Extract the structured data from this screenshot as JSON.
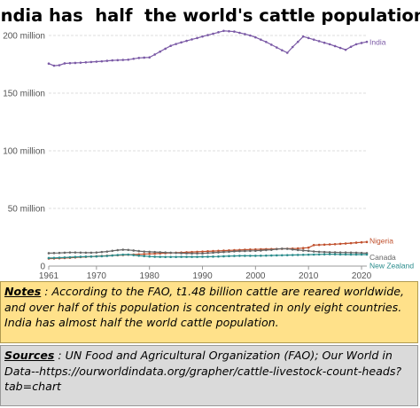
{
  "title": "India has  half  the world's cattle population",
  "notes": {
    "label": "Notes",
    "text": " : According to the FAO, t1.48 billion cattle are reared worldwide, and over half of this population is concentrated in only eight countries. India has almost half the world cattle population."
  },
  "sources": {
    "label": "Sources",
    "text": " : UN Food and Agricultural Organization (FAO); Our World in Data--https://ourworldindata.org/grapher/cattle-livestock-count-heads?tab=chart"
  },
  "colors": {
    "India": "#7b5aa6",
    "Nigeria": "#c0502d",
    "Canada": "#666666",
    "New Zealand": "#2a8c8c",
    "grid": "#dddddd",
    "axis": "#999999"
  },
  "chart_data": {
    "type": "line",
    "title": "",
    "xlabel": "",
    "ylabel": "",
    "xlim": [
      1961,
      2021
    ],
    "ylim": [
      0,
      200
    ],
    "x_ticks": [
      1961,
      1970,
      1980,
      1990,
      2000,
      2010,
      2020
    ],
    "y_ticks": [
      0,
      50,
      100,
      150,
      200
    ],
    "y_tick_labels": [
      "0",
      "50 million",
      "100 million",
      "150 million",
      "200 million"
    ],
    "unit": "million",
    "grid": "horizontal",
    "legend": "inline labels at line ends (right)",
    "x": [
      1961,
      1962,
      1963,
      1964,
      1965,
      1966,
      1967,
      1968,
      1969,
      1970,
      1971,
      1972,
      1973,
      1974,
      1975,
      1976,
      1977,
      1978,
      1979,
      1980,
      1981,
      1982,
      1983,
      1984,
      1985,
      1986,
      1987,
      1988,
      1989,
      1990,
      1991,
      1992,
      1993,
      1994,
      1995,
      1996,
      1997,
      1998,
      1999,
      2000,
      2001,
      2002,
      2003,
      2004,
      2005,
      2006,
      2007,
      2008,
      2009,
      2010,
      2011,
      2012,
      2013,
      2014,
      2015,
      2016,
      2017,
      2018,
      2019,
      2020,
      2021
    ],
    "series": [
      {
        "name": "India",
        "values": [
          175.6,
          173.8,
          174.2,
          175.8,
          176.0,
          176.2,
          176.4,
          176.7,
          177.0,
          177.3,
          177.6,
          178.0,
          178.4,
          178.6,
          178.8,
          179.0,
          179.8,
          180.5,
          180.8,
          181.0,
          183.5,
          186.0,
          188.5,
          191.0,
          192.6,
          194.0,
          195.3,
          196.6,
          197.8,
          199.1,
          200.3,
          201.5,
          202.8,
          204.0,
          203.7,
          203.4,
          202.3,
          201.2,
          200.0,
          198.4,
          196.4,
          194.4,
          192.0,
          189.6,
          187.2,
          185.0,
          190.0,
          194.5,
          199.1,
          197.8,
          196.4,
          195.1,
          193.7,
          192.4,
          190.8,
          189.2,
          187.6,
          190.2,
          192.4,
          193.5,
          194.5
        ]
      },
      {
        "name": "Nigeria",
        "values": [
          6.5,
          6.6,
          6.8,
          7.0,
          7.2,
          7.5,
          7.8,
          8.0,
          8.2,
          8.5,
          8.8,
          9.0,
          9.2,
          9.4,
          9.6,
          9.8,
          10.0,
          10.2,
          10.4,
          10.6,
          10.8,
          11.0,
          11.2,
          11.4,
          11.6,
          11.8,
          12.0,
          12.2,
          12.4,
          12.6,
          12.8,
          13.0,
          13.2,
          13.4,
          13.6,
          13.8,
          14.0,
          14.2,
          14.4,
          14.5,
          14.6,
          14.7,
          14.8,
          14.9,
          15.0,
          15.1,
          15.2,
          15.3,
          15.6,
          16.0,
          18.2,
          18.4,
          18.6,
          18.8,
          19.0,
          19.3,
          19.6,
          19.9,
          20.3,
          20.6,
          20.9
        ]
      },
      {
        "name": "Canada",
        "values": [
          11.2,
          11.3,
          11.4,
          11.6,
          11.8,
          11.8,
          11.7,
          11.6,
          11.6,
          11.8,
          12.2,
          12.6,
          13.2,
          13.8,
          14.2,
          14.0,
          13.5,
          13.0,
          12.6,
          12.4,
          12.2,
          12.0,
          11.8,
          11.6,
          11.4,
          11.2,
          11.1,
          11.0,
          11.0,
          11.0,
          11.3,
          11.6,
          11.9,
          12.2,
          12.5,
          12.8,
          13.0,
          13.1,
          13.2,
          13.3,
          13.5,
          13.9,
          14.1,
          14.7,
          15.1,
          15.0,
          14.4,
          13.9,
          13.5,
          13.2,
          12.7,
          12.4,
          12.2,
          12.0,
          11.9,
          11.8,
          11.8,
          11.7,
          11.6,
          11.4,
          11.2
        ]
      },
      {
        "name": "New Zealand",
        "values": [
          7.0,
          7.1,
          7.3,
          7.5,
          7.7,
          7.9,
          8.1,
          8.2,
          8.3,
          8.4,
          8.6,
          8.8,
          9.2,
          9.6,
          9.9,
          10.0,
          9.5,
          9.0,
          8.7,
          8.3,
          8.1,
          8.0,
          7.9,
          7.9,
          7.9,
          8.0,
          8.0,
          8.0,
          8.0,
          8.1,
          8.1,
          8.2,
          8.3,
          8.5,
          8.7,
          8.8,
          8.9,
          8.9,
          8.9,
          8.9,
          9.0,
          9.1,
          9.2,
          9.3,
          9.4,
          9.5,
          9.6,
          9.7,
          9.8,
          9.9,
          10.0,
          10.1,
          10.2,
          10.3,
          10.2,
          10.1,
          10.1,
          10.0,
          10.0,
          10.0,
          10.0
        ]
      }
    ]
  }
}
